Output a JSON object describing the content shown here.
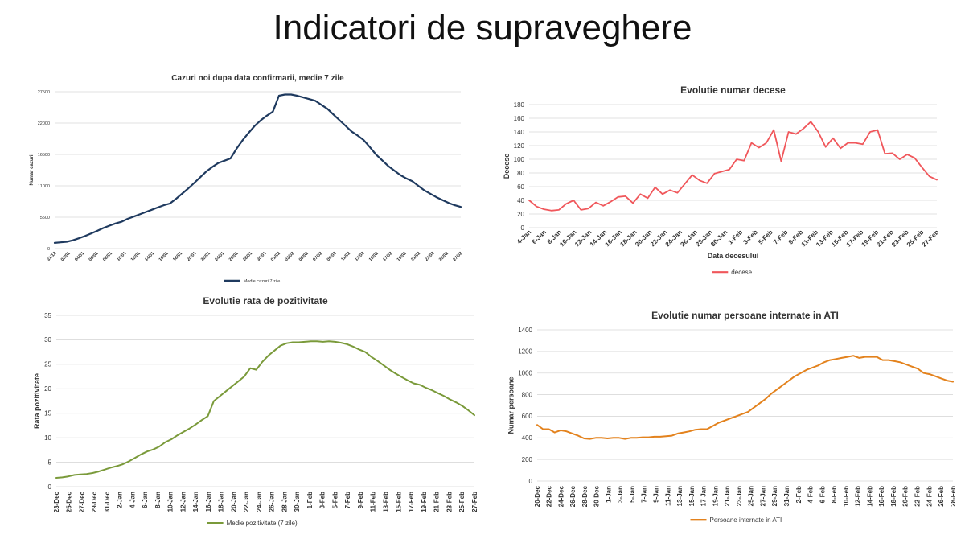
{
  "page": {
    "title": "Indicatori de supraveghere"
  },
  "chart_data": [
    {
      "id": "cases",
      "type": "line",
      "title": "Cazuri noi dupa data confirmarii, medie 7 zile",
      "xlabel": "",
      "ylabel": "Numar cazuri",
      "ylim": [
        0,
        27500
      ],
      "yticks": [
        0,
        5500,
        11000,
        16500,
        22000,
        27500
      ],
      "grid": true,
      "legend": "bottom",
      "color": "#1f3a5f",
      "x_tick_labels": [
        "31/12",
        "02/01",
        "04/01",
        "06/01",
        "08/01",
        "10/01",
        "12/01",
        "14/01",
        "16/01",
        "18/01",
        "20/01",
        "22/01",
        "24/01",
        "26/01",
        "28/01",
        "30/01",
        "01/02",
        "03/02",
        "05/02",
        "07/02",
        "09/02",
        "11/02",
        "13/02",
        "15/02",
        "17/02",
        "19/02",
        "21/02",
        "23/02",
        "25/02",
        "27/02"
      ],
      "series": [
        {
          "name": "Medie cazuri 7 zile",
          "values": [
            1000,
            1100,
            1200,
            1450,
            1800,
            2200,
            2650,
            3100,
            3600,
            4000,
            4400,
            4700,
            5200,
            5600,
            6000,
            6400,
            6800,
            7200,
            7600,
            7900,
            8700,
            9600,
            10500,
            11500,
            12500,
            13500,
            14300,
            15000,
            15400,
            15800,
            17500,
            19000,
            20300,
            21500,
            22500,
            23300,
            24000,
            26800,
            27000,
            27000,
            26800,
            26500,
            26200,
            25900,
            25200,
            24500,
            23500,
            22500,
            21500,
            20500,
            19800,
            19000,
            17800,
            16500,
            15500,
            14500,
            13700,
            12900,
            12300,
            11800,
            11000,
            10200,
            9600,
            9000,
            8500,
            8000,
            7600,
            7300
          ]
        }
      ]
    },
    {
      "id": "deaths",
      "type": "line",
      "title": "Evolutie numar decese",
      "xlabel": "Data decesului",
      "ylabel": "Decese",
      "ylim": [
        0,
        180
      ],
      "yticks": [
        0,
        20,
        40,
        60,
        80,
        100,
        120,
        140,
        160,
        180
      ],
      "grid": true,
      "legend": "bottom",
      "color": "#f0575b",
      "x_tick_labels": [
        "4-Jan",
        "6-Jan",
        "8-Jan",
        "10-Jan",
        "12-Jan",
        "14-Jan",
        "16-Jan",
        "18-Jan",
        "20-Jan",
        "22-Jan",
        "24-Jan",
        "26-Jan",
        "28-Jan",
        "30-Jan",
        "1-Feb",
        "3-Feb",
        "5-Feb",
        "7-Feb",
        "9-Feb",
        "11-Feb",
        "13-Feb",
        "15-Feb",
        "17-Feb",
        "19-Feb",
        "21-Feb",
        "23-Feb",
        "25-Feb",
        "27-Feb"
      ],
      "series": [
        {
          "name": "decese",
          "values": [
            40,
            31,
            27,
            25,
            26,
            35,
            40,
            26,
            28,
            37,
            32,
            38,
            45,
            46,
            36,
            49,
            43,
            59,
            49,
            55,
            51,
            64,
            77,
            69,
            65,
            79,
            82,
            85,
            100,
            98,
            124,
            117,
            124,
            143,
            97,
            140,
            137,
            145,
            155,
            140,
            118,
            131,
            116,
            124,
            124,
            122,
            140,
            143,
            108,
            109,
            100,
            107,
            102,
            88,
            75,
            70
          ]
        }
      ]
    },
    {
      "id": "positivity",
      "type": "line",
      "title": "Evolutie rata de pozitivitate",
      "xlabel": "",
      "ylabel": "Rata pozitivitate",
      "ylim": [
        0,
        35
      ],
      "yticks": [
        0,
        5,
        10,
        15,
        20,
        25,
        30,
        35
      ],
      "grid": true,
      "legend": "bottom",
      "color": "#7a9a3a",
      "x_tick_labels": [
        "23-Dec",
        "25-Dec",
        "27-Dec",
        "29-Dec",
        "31-Dec",
        "2-Jan",
        "4-Jan",
        "6-Jan",
        "8-Jan",
        "10-Jan",
        "12-Jan",
        "14-Jan",
        "16-Jan",
        "18-Jan",
        "20-Jan",
        "22-Jan",
        "24-Jan",
        "26-Jan",
        "28-Jan",
        "30-Jan",
        "1-Feb",
        "3-Feb",
        "5-Feb",
        "7-Feb",
        "9-Feb",
        "11-Feb",
        "13-Feb",
        "15-Feb",
        "17-Feb",
        "19-Feb",
        "21-Feb",
        "23-Feb",
        "25-Feb",
        "27-Feb"
      ],
      "series": [
        {
          "name": "Medie pozitivitate (7 zile)",
          "values": [
            1.8,
            1.9,
            2.1,
            2.4,
            2.5,
            2.6,
            2.8,
            3.1,
            3.5,
            3.9,
            4.2,
            4.6,
            5.2,
            5.9,
            6.6,
            7.2,
            7.6,
            8.2,
            9.1,
            9.7,
            10.5,
            11.2,
            11.9,
            12.7,
            13.6,
            14.4,
            17.5,
            18.5,
            19.5,
            20.5,
            21.5,
            22.5,
            24.2,
            23.9,
            25.5,
            26.8,
            27.8,
            28.8,
            29.3,
            29.5,
            29.5,
            29.6,
            29.7,
            29.7,
            29.6,
            29.7,
            29.6,
            29.4,
            29.1,
            28.6,
            28.0,
            27.5,
            26.5,
            25.7,
            24.8,
            23.9,
            23.1,
            22.4,
            21.7,
            21.1,
            20.8,
            20.2,
            19.7,
            19.1,
            18.5,
            17.8,
            17.2,
            16.5,
            15.6,
            14.6
          ]
        }
      ]
    },
    {
      "id": "icu",
      "type": "line",
      "title": "Evolutie numar persoane internate in ATI",
      "xlabel": "",
      "ylabel": "Numar persoane",
      "ylim": [
        0,
        1400
      ],
      "yticks": [
        0,
        200,
        400,
        600,
        800,
        1000,
        1200,
        1400
      ],
      "grid": true,
      "legend": "bottom",
      "color": "#e3821d",
      "x_tick_labels": [
        "20-Dec",
        "22-Dec",
        "24-Dec",
        "26-Dec",
        "28-Dec",
        "30-Dec",
        "1-Jan",
        "3-Jan",
        "5-Jan",
        "7-Jan",
        "9-Jan",
        "11-Jan",
        "13-Jan",
        "15-Jan",
        "17-Jan",
        "19-Jan",
        "21-Jan",
        "23-Jan",
        "25-Jan",
        "27-Jan",
        "29-Jan",
        "31-Jan",
        "2-Feb",
        "4-Feb",
        "6-Feb",
        "8-Feb",
        "10-Feb",
        "12-Feb",
        "14-Feb",
        "16-Feb",
        "18-Feb",
        "20-Feb",
        "22-Feb",
        "24-Feb",
        "26-Feb",
        "28-Feb"
      ],
      "series": [
        {
          "name": "Persoane internate in ATI",
          "values": [
            520,
            480,
            480,
            450,
            470,
            460,
            440,
            420,
            395,
            390,
            400,
            400,
            395,
            400,
            400,
            390,
            400,
            400,
            405,
            405,
            410,
            410,
            415,
            420,
            440,
            450,
            460,
            475,
            480,
            480,
            510,
            540,
            560,
            580,
            600,
            620,
            640,
            680,
            720,
            760,
            810,
            850,
            890,
            930,
            970,
            1000,
            1030,
            1050,
            1070,
            1100,
            1120,
            1130,
            1140,
            1150,
            1160,
            1140,
            1150,
            1150,
            1150,
            1120,
            1120,
            1110,
            1100,
            1080,
            1060,
            1040,
            1000,
            990,
            970,
            950,
            930,
            920
          ]
        }
      ]
    }
  ]
}
